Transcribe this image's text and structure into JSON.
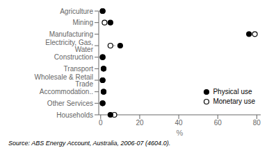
{
  "chart_data": {
    "type": "dot",
    "orientation": "horizontal",
    "categories": [
      "Agriculture",
      "Mining",
      "Manufacturing",
      "Electricity, Gas, Water",
      "Construction",
      "Transport",
      "Wholesale & Retail Trade",
      "Accommodation..",
      "Other Services",
      "Households"
    ],
    "series": [
      {
        "name": "Physical use",
        "color": "black",
        "marker": "circle",
        "values": [
          1.0,
          5.0,
          76.0,
          10.0,
          1.0,
          1.5,
          1.0,
          1.5,
          1.0,
          5.0
        ]
      },
      {
        "name": "Monetary use",
        "color": "black",
        "marker": "circle_open",
        "values": [
          1.0,
          2.0,
          79.0,
          5.0,
          1.0,
          1.5,
          1.0,
          1.5,
          1.0,
          7.0
        ]
      }
    ],
    "xlabel": "%",
    "xlim": [
      -1,
      82
    ],
    "xticks": [
      0,
      20,
      40,
      60,
      80
    ],
    "grid": false,
    "legend": "lower right",
    "annotations": [
      "Source: ABS Energy Account, Australia, 2006-07 (4604.0)."
    ]
  }
}
